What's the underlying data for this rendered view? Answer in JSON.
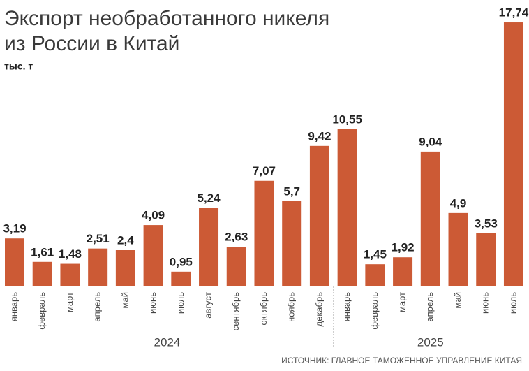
{
  "chart_data": {
    "type": "bar",
    "title": [
      "Экспорт необработанного никеля",
      "из России в Китай"
    ],
    "subtitle": "тыс. т",
    "color": "#cc5a35",
    "groups": [
      {
        "label": "2024",
        "categories": [
          "январь",
          "февраль",
          "март",
          "апрель",
          "май",
          "июнь",
          "июль",
          "август",
          "сентябрь",
          "октябрь",
          "ноябрь",
          "декабрь"
        ],
        "values": [
          3.19,
          1.61,
          1.48,
          2.51,
          2.4,
          4.09,
          0.95,
          5.24,
          2.63,
          7.07,
          5.7,
          9.42
        ],
        "value_labels": [
          "3,19",
          "1,61",
          "1,48",
          "2,51",
          "2,4",
          "4,09",
          "0,95",
          "5,24",
          "2,63",
          "7,07",
          "5,7",
          "9,42"
        ]
      },
      {
        "label": "2025",
        "categories": [
          "январь",
          "февраль",
          "март",
          "апрель",
          "май",
          "июнь",
          "июль"
        ],
        "values": [
          10.55,
          1.45,
          1.92,
          9.04,
          4.9,
          3.53,
          17.74
        ],
        "value_labels": [
          "10,55",
          "1,45",
          "1,92",
          "9,04",
          "4,9",
          "3,53",
          "17,74"
        ]
      }
    ],
    "source": "ИСТОЧНИК: ГЛАВНОЕ ТАМОЖЕННОЕ УПРАВЛЕНИЕ КИТАЯ"
  }
}
